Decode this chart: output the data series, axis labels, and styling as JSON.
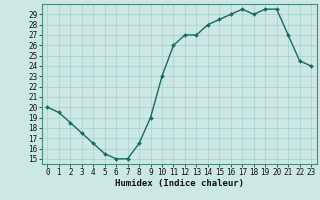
{
  "x": [
    0,
    1,
    2,
    3,
    4,
    5,
    6,
    7,
    8,
    9,
    10,
    11,
    12,
    13,
    14,
    15,
    16,
    17,
    18,
    19,
    20,
    21,
    22,
    23
  ],
  "y": [
    20,
    19.5,
    18.5,
    17.5,
    16.5,
    15.5,
    15,
    15,
    16.5,
    19,
    23,
    26,
    27,
    27,
    28,
    28.5,
    29,
    29.5,
    29,
    29.5,
    29.5,
    27,
    24.5,
    24
  ],
  "line_color": "#1a6b5e",
  "marker": "D",
  "marker_size": 2.0,
  "bg_color": "#cce8e4",
  "grid_color": "#aacfcc",
  "xlabel": "Humidex (Indice chaleur)",
  "xlabel_fontsize": 6.5,
  "xlim": [
    -0.5,
    23.5
  ],
  "ylim": [
    14.5,
    30.0
  ],
  "yticks": [
    15,
    16,
    17,
    18,
    19,
    20,
    21,
    22,
    23,
    24,
    25,
    26,
    27,
    28,
    29
  ],
  "xticks": [
    0,
    1,
    2,
    3,
    4,
    5,
    6,
    7,
    8,
    9,
    10,
    11,
    12,
    13,
    14,
    15,
    16,
    17,
    18,
    19,
    20,
    21,
    22,
    23
  ],
  "tick_fontsize": 5.5,
  "line_width": 1.0,
  "spine_color": "#4a8a7a"
}
